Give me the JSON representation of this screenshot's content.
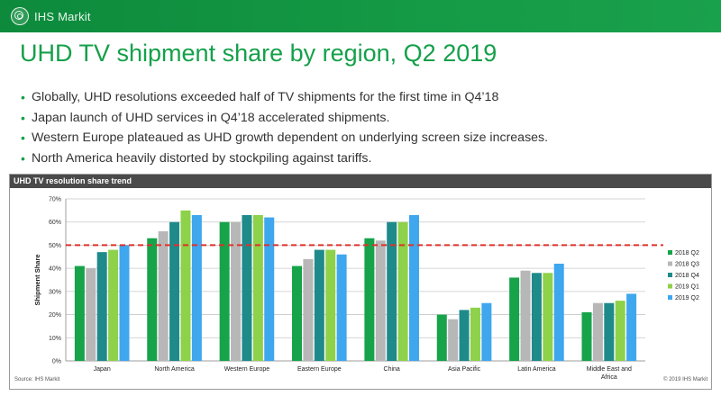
{
  "brand": {
    "name": "IHS Markit"
  },
  "slide": {
    "title": "UHD TV shipment share by region, Q2 2019",
    "bullets": [
      "Globally, UHD resolutions exceeded half of TV shipments for the first time in Q4’18",
      "Japan launch of UHD services in Q4’18 accelerated shipments.",
      "Western Europe plateaued as UHD growth dependent on underlying screen size increases.",
      "North America heavily distorted by stockpiling against tariffs."
    ]
  },
  "panel": {
    "header": "UHD TV resolution share trend",
    "source": "Source: IHS Markit",
    "copyright": "© 2019 IHS Markit"
  },
  "colors": {
    "brand_green": "#15a04a",
    "reference_line": "#e0312b"
  },
  "chart_data": {
    "type": "bar",
    "title": "",
    "xlabel": "",
    "ylabel": "Shipment Share",
    "categories": [
      "Japan",
      "North America",
      "Western Europe",
      "Eastern Europe",
      "China",
      "Asia Pacific",
      "Latin America",
      "Middle East and Africa"
    ],
    "series": [
      {
        "name": "2018 Q2",
        "color": "#16a34a",
        "values": [
          41,
          53,
          60,
          41,
          53,
          20,
          36,
          21
        ]
      },
      {
        "name": "2018 Q3",
        "color": "#b7b7b7",
        "values": [
          40,
          56,
          60,
          44,
          52,
          18,
          39,
          25
        ]
      },
      {
        "name": "2018 Q4",
        "color": "#1f8a8a",
        "values": [
          47,
          60,
          63,
          48,
          60,
          22,
          38,
          25
        ]
      },
      {
        "name": "2019 Q1",
        "color": "#8ed14a",
        "values": [
          48,
          65,
          63,
          48,
          60,
          23,
          38,
          26
        ]
      },
      {
        "name": "2019 Q2",
        "color": "#3ea7ee",
        "values": [
          50,
          63,
          62,
          46,
          63,
          25,
          42,
          29
        ]
      }
    ],
    "ylim": [
      0,
      70
    ],
    "yticks": [
      0,
      10,
      20,
      30,
      40,
      50,
      60,
      70
    ],
    "tick_format": "percent",
    "reference_line": 50,
    "grid": true,
    "legend_position": "right"
  }
}
